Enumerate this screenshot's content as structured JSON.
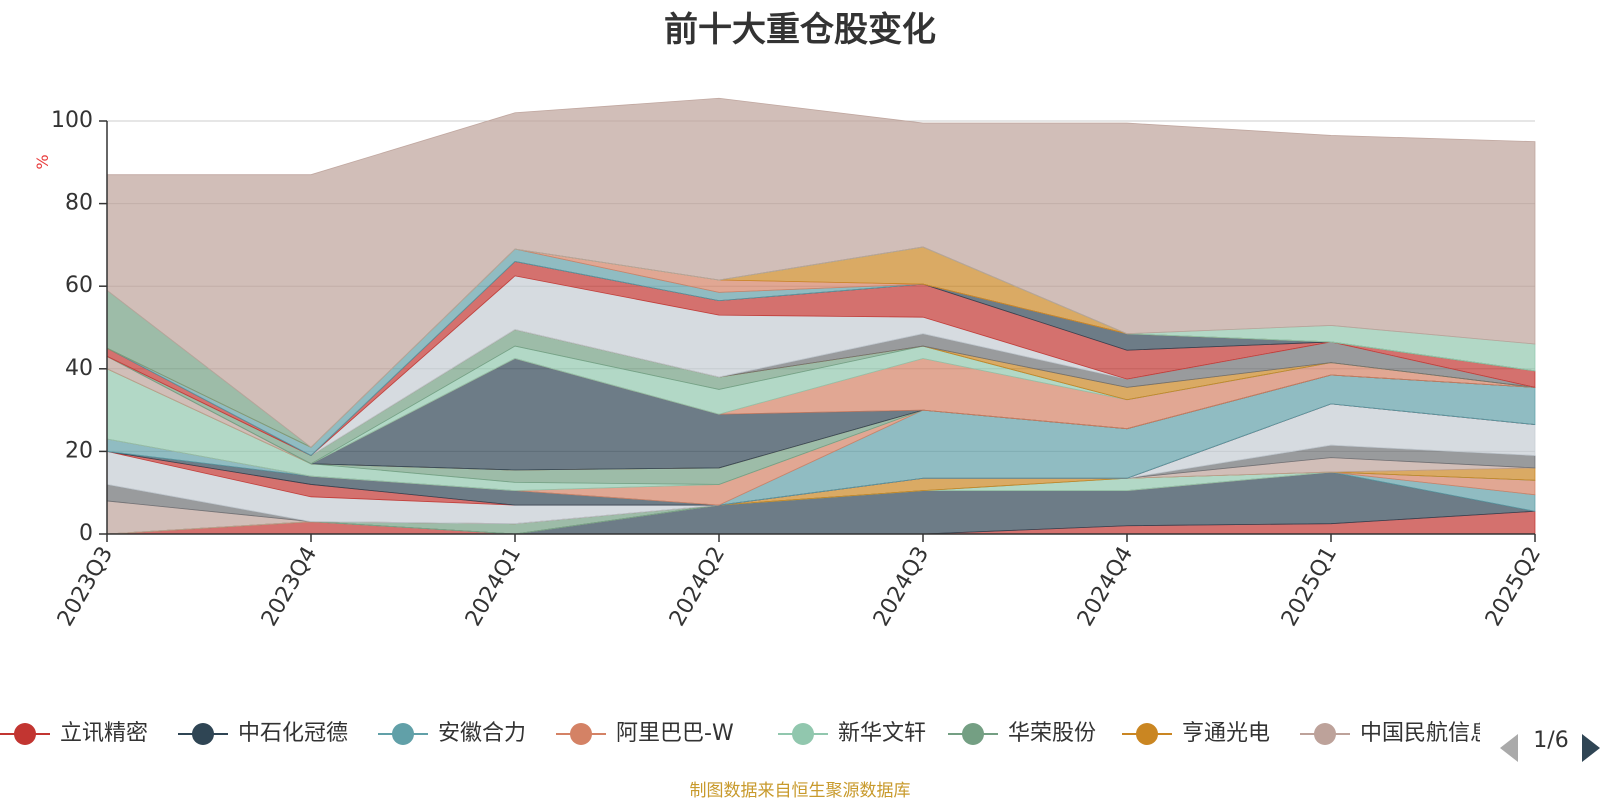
{
  "chart_data": {
    "type": "area",
    "stacked": true,
    "title": "前十大重仓股变化",
    "ylabel": "%",
    "ylim": [
      0,
      100
    ],
    "yticks": [
      0,
      20,
      40,
      60,
      80,
      100
    ],
    "grid": true,
    "legend_position": "bottom",
    "categories": [
      "2023Q3",
      "2023Q4",
      "2024Q1",
      "2024Q2",
      "2024Q3",
      "2024Q4",
      "2025Q1",
      "2025Q2"
    ],
    "series": [
      {
        "name": "立讯精密",
        "color": "#c23531",
        "values": [
          0,
          3,
          0,
          0,
          0,
          2,
          2.5,
          5.5
        ]
      },
      {
        "name": "中石化冠德",
        "color": "#2f4554",
        "values": [
          0,
          0,
          0,
          7,
          10.5,
          8.5,
          12.5,
          0
        ]
      },
      {
        "name": "安徽合力",
        "color": "#61a0a8",
        "values": [
          0,
          0,
          0,
          0,
          0,
          0,
          0,
          4
        ]
      },
      {
        "name": "阿里巴巴-W",
        "color": "#d48265",
        "values": [
          0,
          0,
          0,
          0,
          0,
          0,
          0,
          3.5
        ]
      },
      {
        "name": "新华文轩",
        "color": "#91c7ae",
        "values": [
          0,
          0,
          0,
          0,
          0,
          3,
          0,
          0
        ]
      },
      {
        "name": "华荣股份",
        "color": "#749f83",
        "values": [
          0,
          0,
          2.5,
          0,
          0,
          0,
          0,
          0
        ]
      },
      {
        "name": "亨通光电",
        "color": "#ca8622",
        "values": [
          0,
          0,
          0,
          0,
          3,
          0,
          0,
          3
        ]
      },
      {
        "name": "中国民航信息网络",
        "color": "#bda29a",
        "values": [
          8,
          0,
          0,
          0,
          0,
          0,
          3.5,
          0
        ]
      },
      {
        "name": "",
        "color": "#6e7074",
        "values": [
          4,
          0,
          0,
          0,
          0,
          0,
          3,
          3
        ]
      },
      {
        "name": "",
        "color": "#c4ccd3",
        "values": [
          8,
          6,
          4.5,
          0,
          0,
          0,
          10,
          7.5
        ]
      },
      {
        "name": "",
        "color": "#c23531",
        "values": [
          0,
          3,
          0,
          0,
          0,
          0,
          0,
          0
        ]
      },
      {
        "name": "",
        "color": "#2f4554",
        "values": [
          0,
          2,
          3.5,
          0,
          0,
          0,
          0,
          0
        ]
      },
      {
        "name": "",
        "color": "#61a0a8",
        "values": [
          3,
          0,
          0,
          0,
          16.5,
          12,
          7,
          9
        ]
      },
      {
        "name": "",
        "color": "#d48265",
        "values": [
          0,
          0,
          0,
          5,
          0,
          0,
          0,
          0
        ]
      },
      {
        "name": "",
        "color": "#91c7ae",
        "values": [
          17,
          3,
          2,
          0,
          0,
          0,
          0,
          0
        ]
      },
      {
        "name": "",
        "color": "#749f83",
        "values": [
          0,
          0,
          3,
          4,
          0,
          0,
          0,
          0
        ]
      },
      {
        "name": "",
        "color": "#ca8622",
        "values": [
          0,
          0,
          0,
          0,
          0,
          0,
          0,
          0
        ]
      },
      {
        "name": "",
        "color": "#bda29a",
        "values": [
          3,
          0,
          0,
          0,
          0,
          0,
          0,
          0
        ]
      },
      {
        "name": "",
        "color": "#2f4554",
        "values": [
          0,
          0,
          27,
          13,
          0,
          0,
          0,
          0
        ]
      },
      {
        "name": "",
        "color": "#d48265",
        "values": [
          0,
          0,
          0,
          0,
          12.5,
          7,
          3,
          0
        ]
      },
      {
        "name": "",
        "color": "#91c7ae",
        "values": [
          0,
          0,
          3,
          6,
          3,
          0,
          0,
          0
        ]
      },
      {
        "name": "",
        "color": "#749f83",
        "values": [
          0,
          2,
          4,
          3,
          0,
          0,
          0,
          0
        ]
      },
      {
        "name": "",
        "color": "#ca8622",
        "values": [
          0,
          0,
          0,
          0,
          0,
          3,
          0,
          0
        ]
      },
      {
        "name": "",
        "color": "#6e7074",
        "values": [
          0,
          0,
          0,
          0,
          3,
          2,
          5,
          0
        ]
      },
      {
        "name": "",
        "color": "#c4ccd3",
        "values": [
          0,
          0,
          13,
          15,
          4,
          0,
          0,
          0
        ]
      },
      {
        "name": "",
        "color": "#c23531",
        "values": [
          2,
          0,
          3.5,
          3.5,
          8,
          7,
          0,
          4
        ]
      },
      {
        "name": "",
        "color": "#2f4554",
        "values": [
          0,
          0,
          0,
          0,
          0,
          4,
          0,
          0
        ]
      },
      {
        "name": "",
        "color": "#61a0a8",
        "values": [
          0,
          2,
          3,
          2,
          0,
          0,
          0,
          0
        ]
      },
      {
        "name": "",
        "color": "#d48265",
        "values": [
          0,
          0,
          0,
          3,
          0,
          0,
          0,
          0
        ]
      },
      {
        "name": "",
        "color": "#ca8622",
        "values": [
          0,
          0,
          0,
          0,
          9,
          0,
          0,
          0
        ]
      },
      {
        "name": "",
        "color": "#749f83",
        "values": [
          14,
          0,
          0,
          0,
          0,
          0,
          0,
          0
        ]
      },
      {
        "name": "",
        "color": "#91c7ae",
        "values": [
          0,
          0,
          0,
          0,
          0,
          0,
          4,
          6.5
        ]
      },
      {
        "name": "",
        "color": "#bda29a",
        "values": [
          28,
          66,
          33,
          44,
          30,
          51,
          46,
          49
        ]
      }
    ],
    "legend": {
      "visible_entries": [
        "立讯精密",
        "中石化冠德",
        "安徽合力",
        "阿里巴巴-W",
        "新华文轩",
        "华荣股份",
        "亨通光电",
        "中国民航信息网络"
      ],
      "page": "1/6"
    },
    "source_note": "制图数据来自恒生聚源数据库"
  },
  "icons": {
    "prev_page": "triangle-left-icon",
    "next_page": "triangle-right-icon",
    "legend_marker": "circle-line-marker"
  }
}
